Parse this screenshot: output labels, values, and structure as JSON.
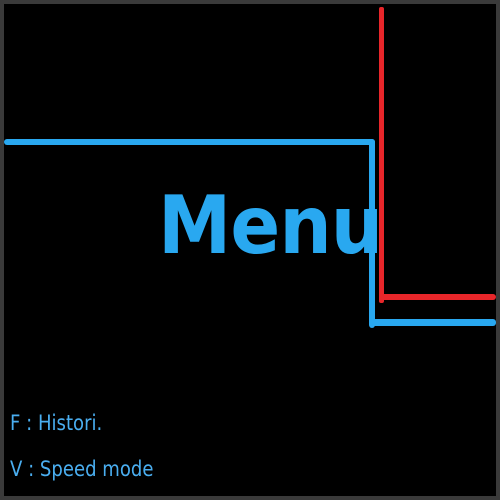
{
  "colors": {
    "background": "#000000",
    "frame": "#3a3a3a",
    "accent_blue": "#29a8f0",
    "accent_red": "#e8262a",
    "hint_text": "#4aaef0"
  },
  "menu": {
    "title": "Menu"
  },
  "hints": [
    {
      "text": "F : Histori."
    },
    {
      "text": "V : Speed mode"
    }
  ]
}
